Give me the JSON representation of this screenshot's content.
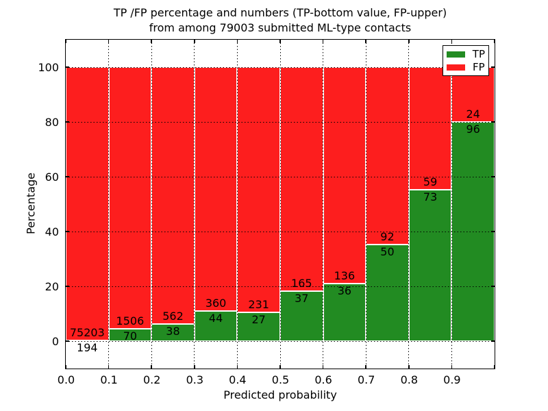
{
  "title": {
    "line1": "TP /FP percentage and numbers (TP-bottom value, FP-upper)",
    "line2": "from among 79003 submitted ML-type contacts"
  },
  "y_axis": {
    "label": "Percentage",
    "ticks": [
      0,
      20,
      40,
      60,
      80,
      100
    ]
  },
  "x_axis": {
    "label": "Predicted probability",
    "ticks": [
      "0.0",
      "0.1",
      "0.2",
      "0.3",
      "0.4",
      "0.5",
      "0.6",
      "0.7",
      "0.8",
      "0.9"
    ]
  },
  "legend": {
    "items": [
      {
        "label": "TP",
        "color": "#228B22"
      },
      {
        "label": "FP",
        "color": "#FD1E1E"
      }
    ]
  },
  "colors": {
    "tp": "#228B22",
    "fp": "#FD1E1E",
    "grid": "#000000",
    "frame": "#000000",
    "background": "#FFFFFF",
    "text": "#000000"
  },
  "chart_data": {
    "type": "bar",
    "stacked": true,
    "title": "TP /FP percentage and numbers (TP-bottom value, FP-upper) from among 79003 submitted ML-type contacts",
    "xlabel": "Predicted probability",
    "ylabel": "Percentage",
    "ylim": [
      -10,
      110
    ],
    "xlim": [
      0.0,
      1.0
    ],
    "grid": "dotted black, horizontal at yticks and vertical at xticks, drawn over bars",
    "legend_position": "upper right",
    "total_contacts": 79003,
    "categories": [
      "0.0-0.1",
      "0.1-0.2",
      "0.2-0.3",
      "0.3-0.4",
      "0.4-0.5",
      "0.5-0.6",
      "0.6-0.7",
      "0.7-0.8",
      "0.8-0.9",
      "0.9-1.0"
    ],
    "series": [
      {
        "name": "TP",
        "color": "#228B22",
        "counts": [
          194,
          70,
          38,
          44,
          27,
          37,
          36,
          50,
          73,
          96
        ],
        "pct": [
          0.26,
          4.44,
          6.33,
          10.89,
          10.47,
          18.32,
          20.93,
          35.21,
          55.3,
          80.0
        ]
      },
      {
        "name": "FP",
        "color": "#FD1E1E",
        "counts": [
          75203,
          1506,
          562,
          360,
          231,
          165,
          136,
          92,
          59,
          24
        ],
        "pct": [
          99.74,
          95.56,
          93.67,
          89.11,
          89.53,
          81.68,
          79.07,
          64.79,
          44.7,
          20.0
        ]
      }
    ],
    "annotation_rule": "FP count printed just above each TP/FP boundary, TP count just below it"
  }
}
